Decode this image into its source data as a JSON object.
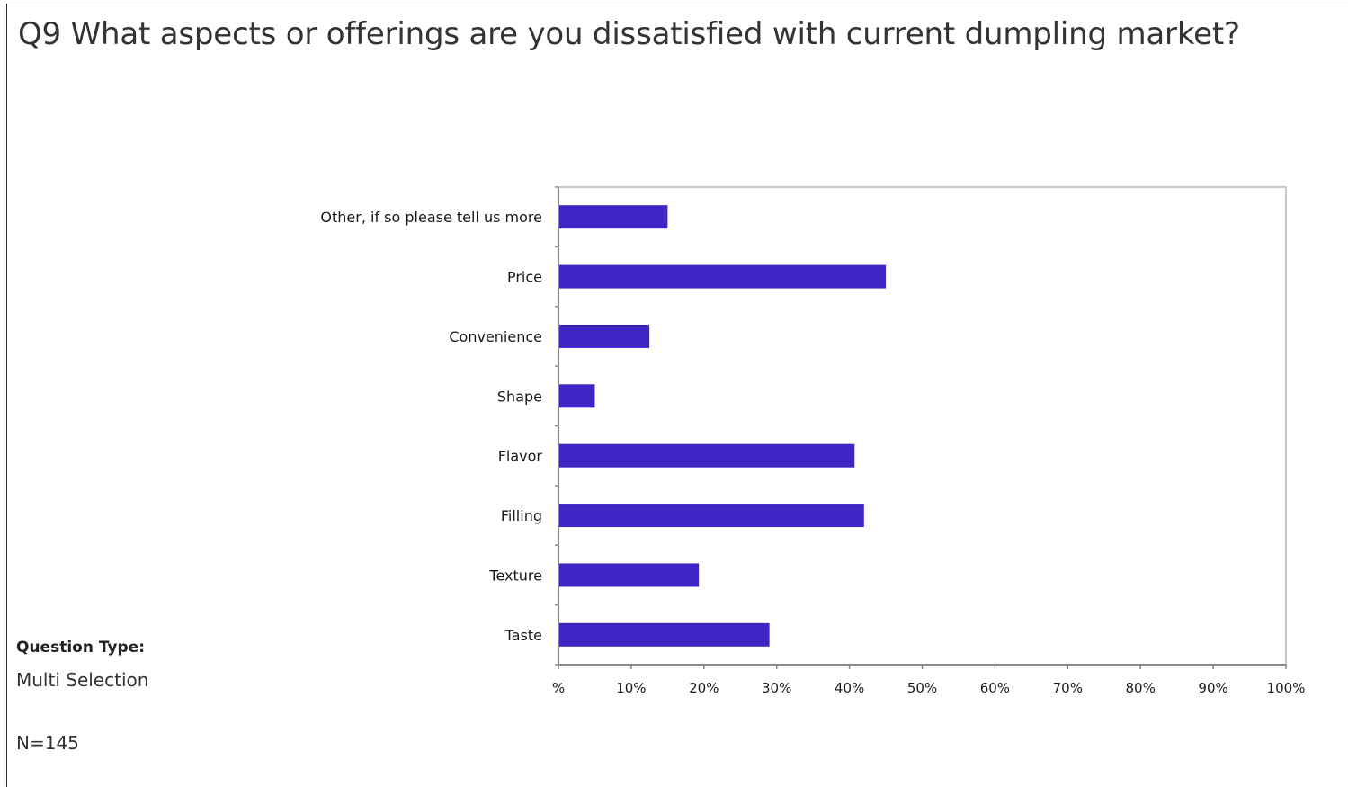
{
  "title": "Q9 What aspects or offerings are you dissatisfied with current dumpling market?",
  "question_type_label": "Question Type:",
  "question_type_value": "Multi Selection",
  "sample_size": "N=145",
  "colors": {
    "bar": "#3d26c4",
    "axis": "#888888",
    "frame": "#c8c8c8"
  },
  "chart_data": {
    "type": "bar",
    "orientation": "horizontal",
    "categories": [
      "Other, if so please tell us more",
      "Price",
      "Convenience",
      "Shape",
      "Flavor",
      "Filling",
      "Texture",
      "Taste"
    ],
    "values": [
      15,
      45,
      12.5,
      5,
      40.7,
      42,
      19.3,
      29
    ],
    "xlim": [
      0,
      100
    ],
    "x_ticks": [
      0,
      10,
      20,
      30,
      40,
      50,
      60,
      70,
      80,
      90,
      100
    ],
    "x_tick_labels": [
      "%",
      "10%",
      "20%",
      "30%",
      "40%",
      "50%",
      "60%",
      "70%",
      "80%",
      "90%",
      "100%"
    ],
    "grid": false,
    "legend": "none"
  }
}
